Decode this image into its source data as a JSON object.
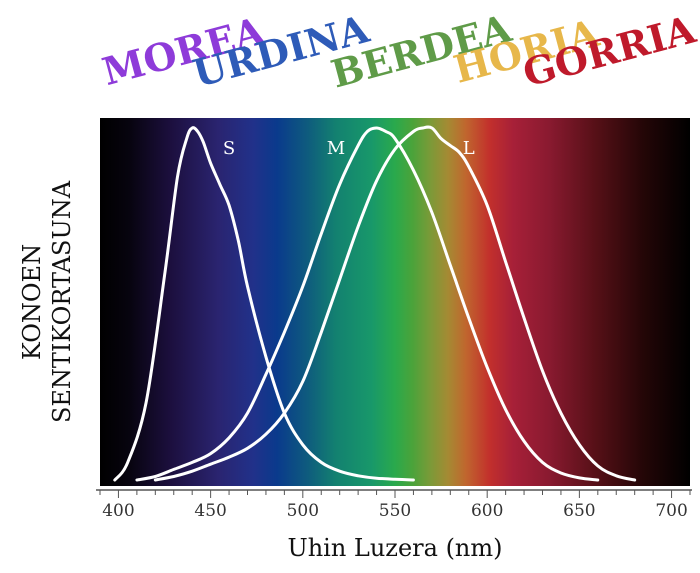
{
  "chart_data": {
    "type": "line",
    "xlabel": "Uhin Luzera (nm)",
    "ylabel_lines": [
      "KONOEN",
      "SENTIKORTASUNA"
    ],
    "xlim": [
      390,
      710
    ],
    "ylim": [
      0,
      1
    ],
    "x_ticks": [
      400,
      450,
      500,
      550,
      600,
      650,
      700
    ],
    "grid": false,
    "color_words": [
      {
        "text": "MOREA",
        "color": "#8e3bd9",
        "nm": 437
      },
      {
        "text": "URDINA",
        "color": "#2e5bb8",
        "nm": 490
      },
      {
        "text": "BERDEA",
        "color": "#5f9b48",
        "nm": 566
      },
      {
        "text": "HORIA",
        "color": "#e7b74a",
        "nm": 623
      },
      {
        "text": "GORRIA",
        "color": "#bf1a2b",
        "nm": 668
      }
    ],
    "series": [
      {
        "name": "S",
        "label_nm": 460,
        "color": "#ffffff",
        "x": [
          398,
          405,
          415,
          425,
          432,
          437,
          440,
          443,
          446,
          450,
          455,
          460,
          465,
          470,
          480,
          490,
          500,
          510,
          520,
          530,
          540,
          550,
          560
        ],
        "values": [
          0.0,
          0.05,
          0.22,
          0.58,
          0.86,
          0.97,
          1.0,
          0.99,
          0.96,
          0.9,
          0.84,
          0.78,
          0.68,
          0.55,
          0.35,
          0.19,
          0.1,
          0.05,
          0.025,
          0.012,
          0.005,
          0.002,
          0.0
        ]
      },
      {
        "name": "M",
        "label_nm": 518,
        "color": "#ffffff",
        "x": [
          410,
          420,
          430,
          440,
          450,
          460,
          470,
          480,
          490,
          500,
          510,
          520,
          530,
          535,
          540,
          545,
          550,
          560,
          570,
          580,
          590,
          600,
          610,
          620,
          630,
          640,
          650,
          660
        ],
        "values": [
          0.0,
          0.01,
          0.03,
          0.05,
          0.075,
          0.12,
          0.19,
          0.3,
          0.42,
          0.55,
          0.7,
          0.84,
          0.95,
          0.99,
          1.0,
          0.99,
          0.97,
          0.88,
          0.76,
          0.61,
          0.46,
          0.32,
          0.2,
          0.11,
          0.05,
          0.02,
          0.006,
          0.0
        ]
      },
      {
        "name": "L",
        "label_nm": 590,
        "color": "#ffffff",
        "x": [
          420,
          430,
          440,
          450,
          460,
          470,
          480,
          490,
          500,
          510,
          520,
          530,
          540,
          550,
          560,
          565,
          570,
          575,
          580,
          585,
          590,
          600,
          610,
          620,
          630,
          640,
          650,
          660,
          670,
          680
        ],
        "values": [
          0.0,
          0.01,
          0.025,
          0.045,
          0.065,
          0.09,
          0.13,
          0.19,
          0.28,
          0.42,
          0.57,
          0.72,
          0.85,
          0.94,
          0.99,
          1.0,
          1.0,
          0.97,
          0.95,
          0.93,
          0.89,
          0.78,
          0.62,
          0.46,
          0.31,
          0.19,
          0.1,
          0.04,
          0.012,
          0.0
        ]
      }
    ]
  }
}
